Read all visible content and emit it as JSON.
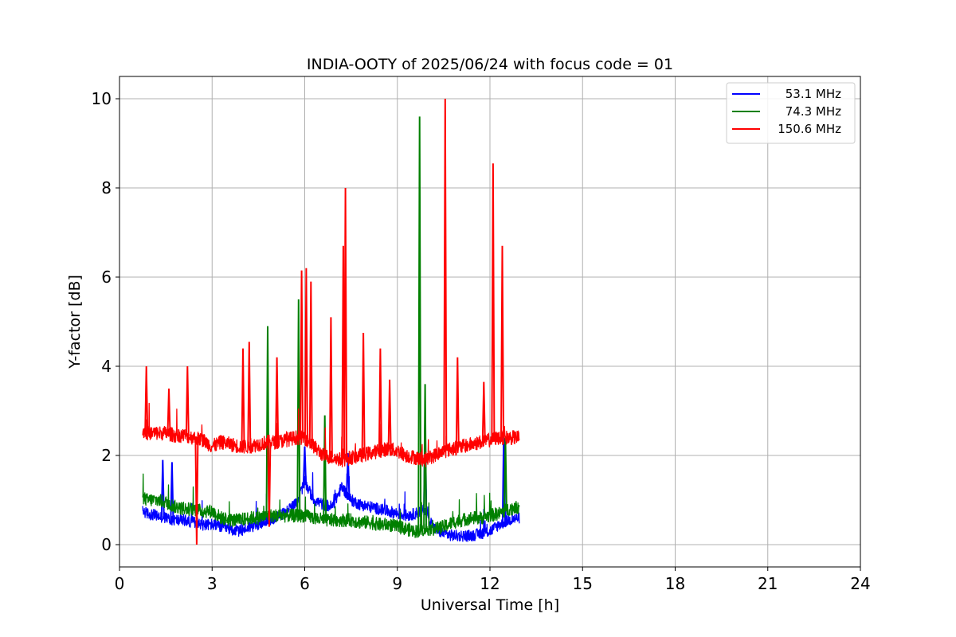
{
  "chart_data": {
    "type": "line",
    "title": "INDIA-OOTY of 2025/06/24 with focus code = 01",
    "xlabel": "Universal Time [h]",
    "ylabel": "Y-factor [dB]",
    "xlim": [
      0,
      24
    ],
    "ylim": [
      -0.5,
      10.5
    ],
    "xticks": [
      0,
      3,
      6,
      9,
      12,
      15,
      18,
      21,
      24
    ],
    "yticks": [
      0,
      2,
      4,
      6,
      8,
      10
    ],
    "grid": true,
    "legend_position": "top-right",
    "series": [
      {
        "name": "53.1 MHz",
        "color": "#0000ff",
        "x": [
          0.75,
          0.9,
          1.2,
          1.5,
          1.8,
          2.1,
          2.4,
          2.7,
          3.0,
          3.3,
          3.6,
          3.9,
          4.2,
          4.5,
          4.8,
          5.1,
          5.4,
          5.7,
          6.0,
          6.3,
          6.6,
          6.9,
          7.2,
          7.5,
          7.8,
          8.1,
          8.4,
          8.7,
          9.0,
          9.3,
          9.6,
          9.9,
          10.2,
          10.5,
          10.8,
          11.1,
          11.4,
          11.7,
          12.0,
          12.3,
          12.6,
          12.95
        ],
        "y": [
          0.75,
          0.7,
          0.65,
          0.6,
          0.55,
          0.55,
          0.5,
          0.45,
          0.45,
          0.4,
          0.35,
          0.3,
          0.4,
          0.45,
          0.55,
          0.6,
          0.75,
          0.9,
          1.4,
          1.0,
          0.9,
          0.85,
          1.3,
          1.0,
          0.9,
          0.85,
          0.8,
          0.75,
          0.7,
          0.65,
          0.7,
          0.8,
          0.35,
          0.25,
          0.2,
          0.2,
          0.2,
          0.25,
          0.3,
          0.45,
          0.55,
          0.6
        ]
      },
      {
        "name": "74.3 MHz",
        "color": "#008000",
        "x": [
          0.75,
          0.9,
          1.2,
          1.5,
          1.8,
          2.1,
          2.4,
          2.7,
          3.0,
          3.3,
          3.6,
          3.9,
          4.2,
          4.5,
          4.8,
          5.1,
          5.4,
          5.7,
          6.0,
          6.3,
          6.6,
          6.9,
          7.2,
          7.5,
          7.8,
          8.1,
          8.4,
          8.7,
          9.0,
          9.3,
          9.6,
          9.9,
          10.2,
          10.5,
          10.8,
          11.1,
          11.4,
          11.7,
          12.0,
          12.3,
          12.6,
          12.95
        ],
        "y": [
          1.05,
          1.0,
          1.0,
          0.95,
          0.85,
          0.8,
          0.8,
          0.75,
          0.75,
          0.6,
          0.55,
          0.55,
          0.6,
          0.6,
          0.65,
          0.65,
          0.65,
          0.65,
          0.65,
          0.6,
          0.55,
          0.55,
          0.55,
          0.55,
          0.5,
          0.5,
          0.45,
          0.45,
          0.4,
          0.35,
          0.3,
          0.35,
          0.35,
          0.4,
          0.5,
          0.55,
          0.6,
          0.6,
          0.65,
          0.7,
          0.8,
          0.85
        ]
      },
      {
        "name": "150.6 MHz",
        "color": "#ff0000",
        "x": [
          0.75,
          0.9,
          1.2,
          1.5,
          1.8,
          2.1,
          2.4,
          2.7,
          3.0,
          3.3,
          3.6,
          3.9,
          4.2,
          4.5,
          4.8,
          5.1,
          5.4,
          5.7,
          6.0,
          6.3,
          6.6,
          6.9,
          7.2,
          7.5,
          7.8,
          8.1,
          8.4,
          8.7,
          9.0,
          9.3,
          9.6,
          9.9,
          10.2,
          10.5,
          10.8,
          11.1,
          11.4,
          11.7,
          12.0,
          12.3,
          12.6,
          12.95
        ],
        "y": [
          2.55,
          2.5,
          2.5,
          2.5,
          2.45,
          2.45,
          2.4,
          2.35,
          2.2,
          2.3,
          2.25,
          2.2,
          2.2,
          2.25,
          2.3,
          2.3,
          2.35,
          2.4,
          2.4,
          2.2,
          2.0,
          1.95,
          1.9,
          1.95,
          2.0,
          2.05,
          2.1,
          2.15,
          2.1,
          2.0,
          1.95,
          1.9,
          2.0,
          2.1,
          2.15,
          2.2,
          2.25,
          2.3,
          2.35,
          2.4,
          2.4,
          2.4
        ]
      }
    ],
    "spikes": [
      {
        "series": "150.6 MHz",
        "x": 0.87,
        "y": 4.0
      },
      {
        "series": "150.6 MHz",
        "x": 1.6,
        "y": 3.5
      },
      {
        "series": "150.6 MHz",
        "x": 2.2,
        "y": 4.0
      },
      {
        "series": "150.6 MHz",
        "x": 2.5,
        "y": 0.0
      },
      {
        "series": "150.6 MHz",
        "x": 4.0,
        "y": 4.4
      },
      {
        "series": "150.6 MHz",
        "x": 4.2,
        "y": 4.55
      },
      {
        "series": "150.6 MHz",
        "x": 4.85,
        "y": 0.4
      },
      {
        "series": "150.6 MHz",
        "x": 5.1,
        "y": 4.2
      },
      {
        "series": "150.6 MHz",
        "x": 5.9,
        "y": 6.15
      },
      {
        "series": "150.6 MHz",
        "x": 6.05,
        "y": 6.2
      },
      {
        "series": "150.6 MHz",
        "x": 6.2,
        "y": 5.9
      },
      {
        "series": "150.6 MHz",
        "x": 6.85,
        "y": 5.1
      },
      {
        "series": "150.6 MHz",
        "x": 7.25,
        "y": 6.7
      },
      {
        "series": "150.6 MHz",
        "x": 7.32,
        "y": 8.0
      },
      {
        "series": "150.6 MHz",
        "x": 7.9,
        "y": 4.75
      },
      {
        "series": "150.6 MHz",
        "x": 8.45,
        "y": 4.4
      },
      {
        "series": "150.6 MHz",
        "x": 8.75,
        "y": 3.7
      },
      {
        "series": "150.6 MHz",
        "x": 10.55,
        "y": 10.0
      },
      {
        "series": "150.6 MHz",
        "x": 10.95,
        "y": 4.2
      },
      {
        "series": "150.6 MHz",
        "x": 11.8,
        "y": 3.65
      },
      {
        "series": "150.6 MHz",
        "x": 12.1,
        "y": 8.55
      },
      {
        "series": "150.6 MHz",
        "x": 12.4,
        "y": 6.7
      },
      {
        "series": "74.3 MHz",
        "x": 4.8,
        "y": 4.9
      },
      {
        "series": "74.3 MHz",
        "x": 5.8,
        "y": 5.5
      },
      {
        "series": "74.3 MHz",
        "x": 6.65,
        "y": 2.9
      },
      {
        "series": "74.3 MHz",
        "x": 9.72,
        "y": 9.6
      },
      {
        "series": "74.3 MHz",
        "x": 9.9,
        "y": 3.6
      },
      {
        "series": "74.3 MHz",
        "x": 12.5,
        "y": 2.4
      },
      {
        "series": "53.1 MHz",
        "x": 1.4,
        "y": 1.9
      },
      {
        "series": "53.1 MHz",
        "x": 1.7,
        "y": 1.85
      },
      {
        "series": "53.1 MHz",
        "x": 6.0,
        "y": 2.2
      },
      {
        "series": "53.1 MHz",
        "x": 7.4,
        "y": 2.05
      },
      {
        "series": "53.1 MHz",
        "x": 9.9,
        "y": 2.9
      },
      {
        "series": "53.1 MHz",
        "x": 12.45,
        "y": 2.65
      }
    ]
  }
}
